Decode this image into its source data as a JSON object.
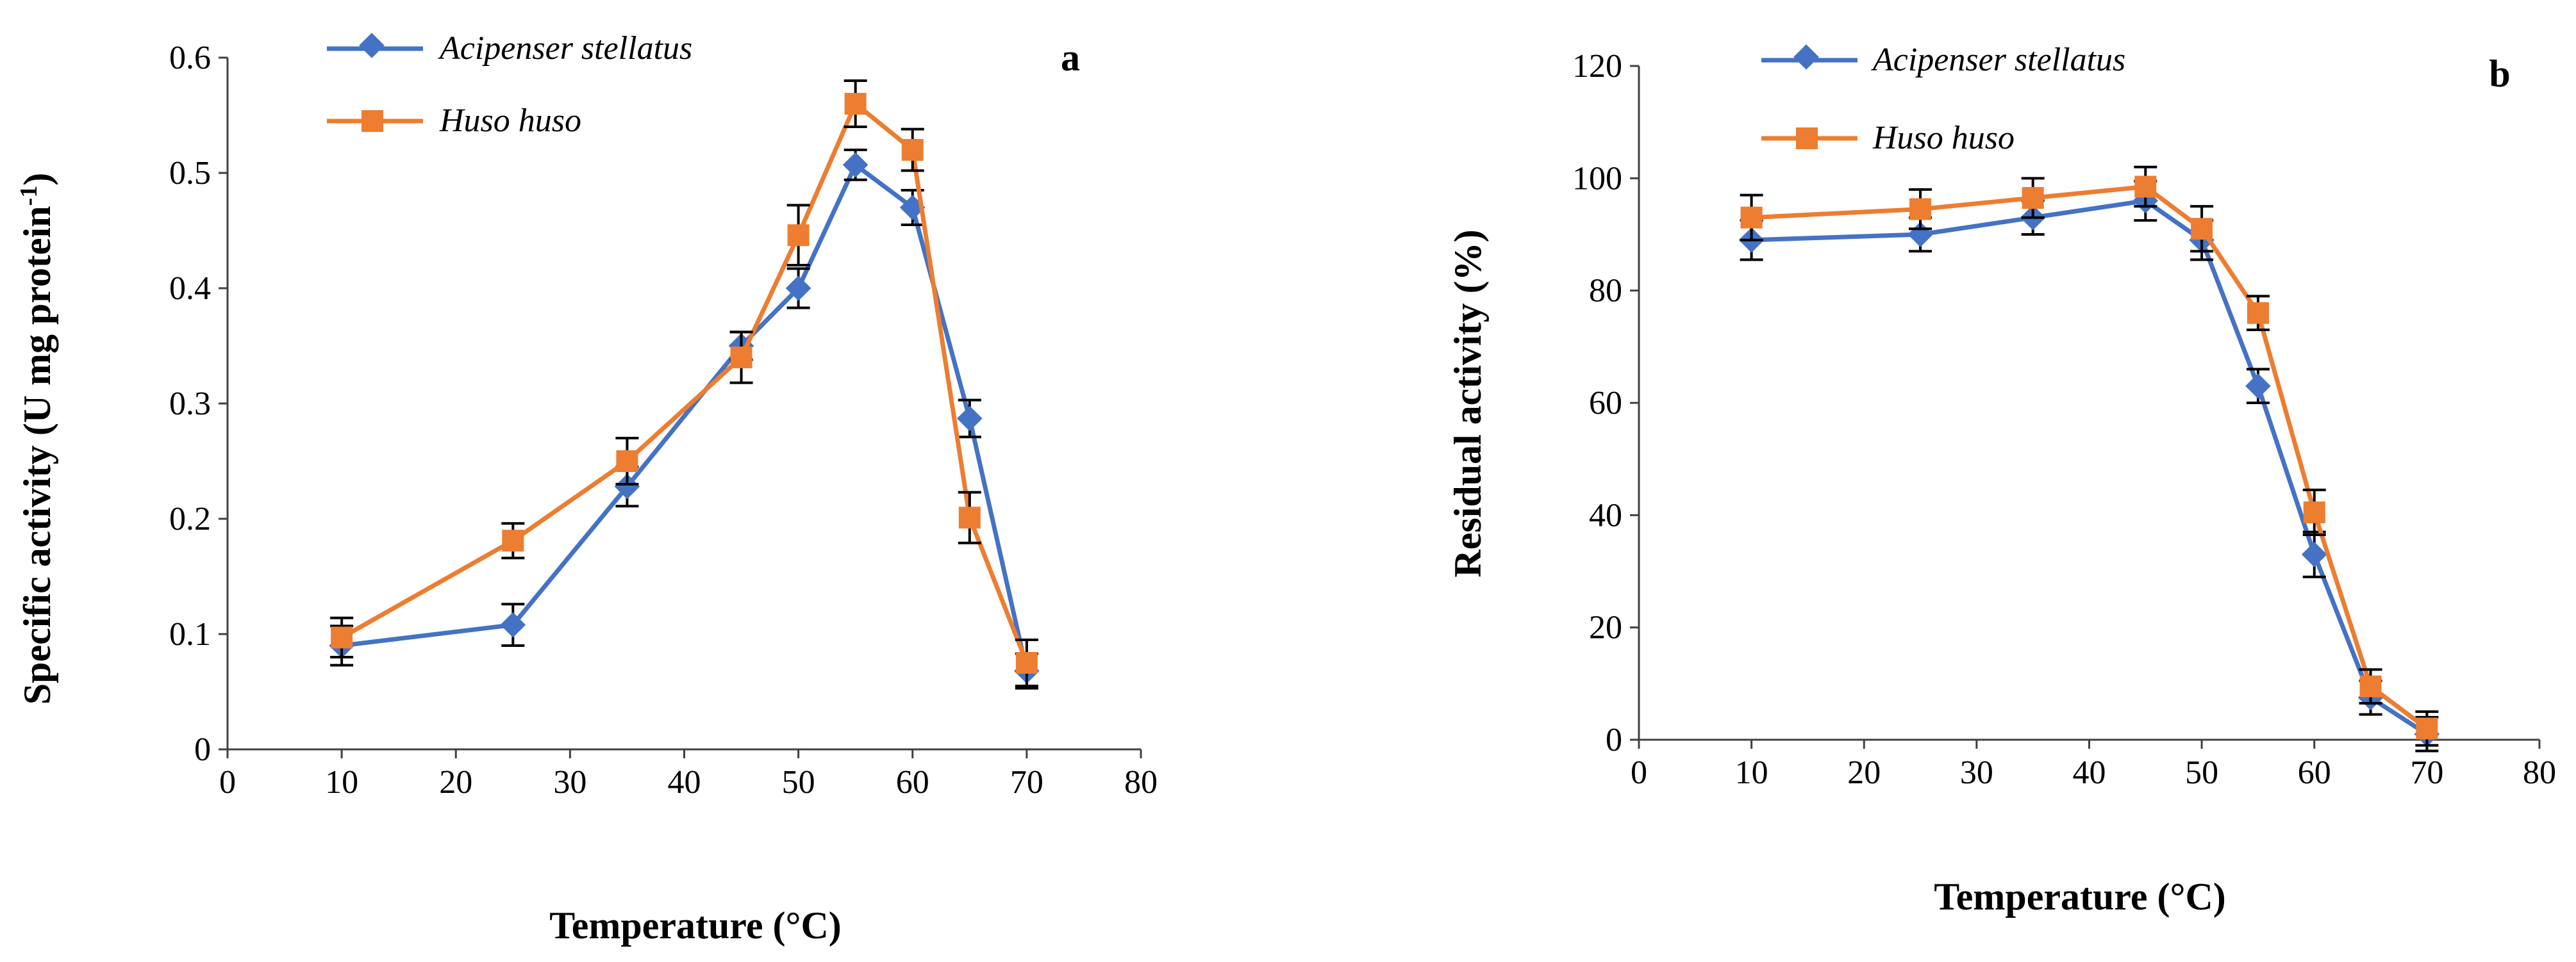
{
  "chart_data": [
    {
      "type": "line",
      "panel_label": "a",
      "xlabel": "Temperature (°C)",
      "ylabel_main": "Specific activity (U mg protein",
      "ylabel_sup": "-1",
      "ylabel_close": ")",
      "xlim": [
        0,
        80
      ],
      "ylim": [
        0,
        0.6
      ],
      "xticks": [
        0,
        10,
        20,
        30,
        40,
        50,
        60,
        70,
        80
      ],
      "xtick_labels": [
        "0",
        "10",
        "20",
        "30",
        "40",
        "50",
        "60",
        "70",
        "80"
      ],
      "yticks": [
        0,
        0.1,
        0.2,
        0.3,
        0.4,
        0.5,
        0.6
      ],
      "ytick_labels": [
        "0",
        "0.1",
        "0.2",
        "0.3",
        "0.4",
        "0.5",
        "0.6"
      ],
      "legend_position": "top-left",
      "x": [
        10,
        25,
        35,
        45,
        50,
        55,
        60,
        65,
        70
      ],
      "series": [
        {
          "name": "Acipenser stellatus",
          "color": "#4472C4",
          "marker": "diamond",
          "values": [
            0.09,
            0.108,
            0.228,
            0.35,
            0.4,
            0.507,
            0.47,
            0.287,
            0.068
          ],
          "errors": [
            0.017,
            0.018,
            0.017,
            0.012,
            0.017,
            0.013,
            0.015,
            0.016,
            0.015
          ]
        },
        {
          "name": "Huso huso",
          "color": "#ED7D31",
          "marker": "square",
          "values": [
            0.097,
            0.181,
            0.25,
            0.34,
            0.446,
            0.56,
            0.52,
            0.201,
            0.075
          ],
          "errors": [
            0.017,
            0.015,
            0.02,
            0.022,
            0.026,
            0.02,
            0.018,
            0.022,
            0.02
          ]
        }
      ]
    },
    {
      "type": "line",
      "panel_label": "b",
      "xlabel": "Temperature (°C)",
      "ylabel_main": "Residual activity (%)",
      "ylabel_sup": "",
      "ylabel_close": "",
      "xlim": [
        0,
        80
      ],
      "ylim": [
        0,
        120
      ],
      "xticks": [
        0,
        10,
        20,
        30,
        40,
        50,
        60,
        70,
        80
      ],
      "xtick_labels": [
        "0",
        "10",
        "20",
        "30",
        "40",
        "50",
        "60",
        "70",
        "80"
      ],
      "yticks": [
        0,
        20,
        40,
        60,
        80,
        100,
        120
      ],
      "ytick_labels": [
        "0",
        "20",
        "40",
        "60",
        "80",
        "100",
        "120"
      ],
      "legend_position": "top-left",
      "x": [
        10,
        25,
        35,
        45,
        50,
        55,
        60,
        65,
        70
      ],
      "series": [
        {
          "name": "Acipenser stellatus",
          "color": "#4472C4",
          "marker": "diamond",
          "values": [
            89,
            90,
            93,
            96,
            89,
            63,
            33,
            7.5,
            1
          ],
          "errors": [
            3.5,
            3.0,
            3.0,
            3.5,
            3.5,
            3.0,
            4.0,
            3.0,
            3.0
          ]
        },
        {
          "name": "Huso huso",
          "color": "#ED7D31",
          "marker": "square",
          "values": [
            93,
            94.5,
            96.5,
            98.5,
            91,
            76,
            40.5,
            9.5,
            2
          ],
          "errors": [
            4.0,
            3.5,
            3.5,
            3.5,
            4.0,
            3.0,
            4.0,
            3.0,
            3.0
          ]
        }
      ]
    }
  ]
}
